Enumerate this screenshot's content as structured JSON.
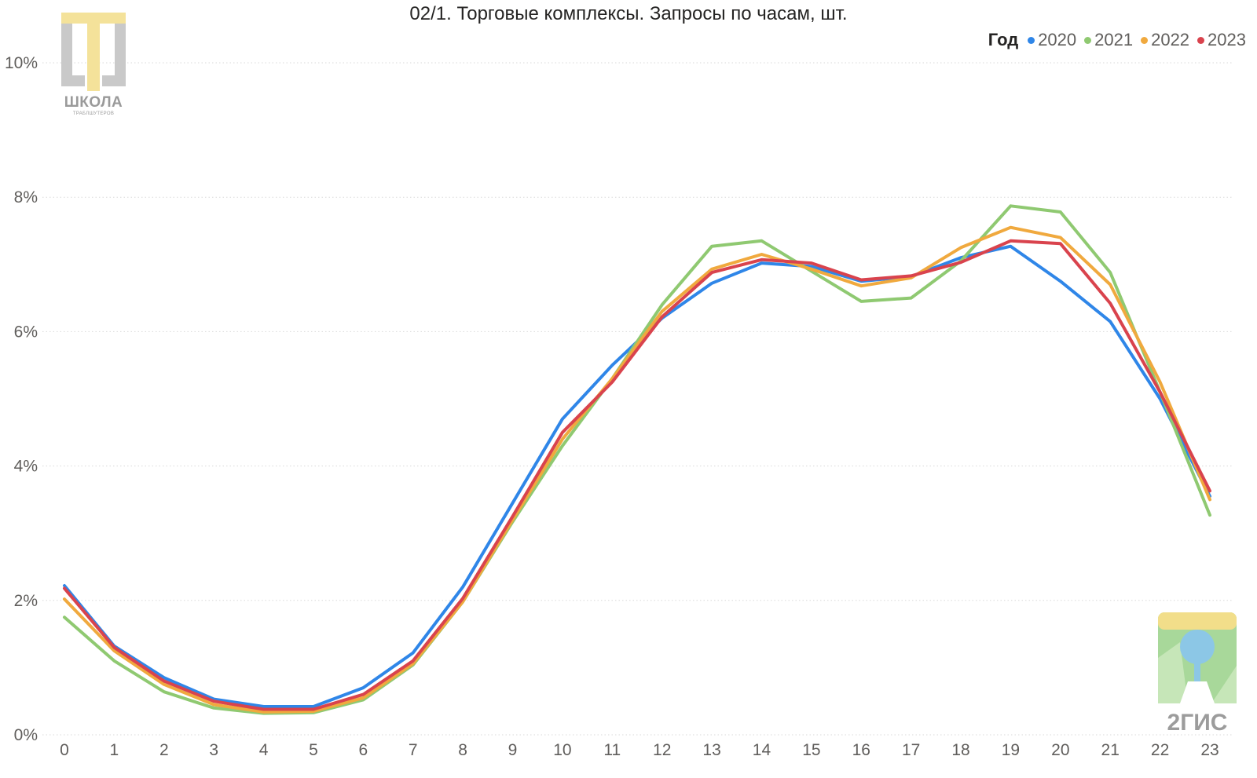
{
  "chart_data": {
    "type": "line",
    "title": "02/1. Торговые комплексы. Запросы по часам, шт.",
    "xlabel": "",
    "ylabel": "",
    "x": [
      0,
      1,
      2,
      3,
      4,
      5,
      6,
      7,
      8,
      9,
      10,
      11,
      12,
      13,
      14,
      15,
      16,
      17,
      18,
      19,
      20,
      21,
      22,
      23
    ],
    "x_tick_labels": [
      "0",
      "1",
      "2",
      "3",
      "4",
      "5",
      "6",
      "7",
      "8",
      "9",
      "10",
      "11",
      "12",
      "13",
      "14",
      "15",
      "16",
      "17",
      "18",
      "19",
      "20",
      "21",
      "22",
      "23"
    ],
    "ylim": [
      0,
      10
    ],
    "y_ticks": [
      0,
      2,
      4,
      6,
      8,
      10
    ],
    "y_tick_labels": [
      "0%",
      "2%",
      "4%",
      "6%",
      "8%",
      "10%"
    ],
    "grid": true,
    "legend": {
      "title": "Год",
      "placement": "top-right"
    },
    "series": [
      {
        "name": "2020",
        "color": "#2f86e8",
        "values": [
          2.22,
          1.32,
          0.85,
          0.53,
          0.42,
          0.42,
          0.7,
          1.22,
          2.2,
          3.45,
          4.7,
          5.5,
          6.2,
          6.72,
          7.02,
          6.97,
          6.75,
          6.82,
          7.1,
          7.27,
          6.75,
          6.15,
          5.0,
          3.55
        ]
      },
      {
        "name": "2021",
        "color": "#8fc971",
        "values": [
          1.75,
          1.1,
          0.64,
          0.4,
          0.32,
          0.33,
          0.52,
          1.04,
          1.98,
          3.17,
          4.3,
          5.3,
          6.4,
          7.27,
          7.35,
          6.9,
          6.45,
          6.5,
          7.05,
          7.87,
          7.78,
          6.88,
          5.1,
          3.27
        ]
      },
      {
        "name": "2022",
        "color": "#f0a93e",
        "values": [
          2.02,
          1.25,
          0.75,
          0.45,
          0.34,
          0.35,
          0.55,
          1.06,
          1.98,
          3.2,
          4.4,
          5.3,
          6.3,
          6.93,
          7.15,
          6.93,
          6.68,
          6.8,
          7.25,
          7.55,
          7.4,
          6.7,
          5.25,
          3.5
        ]
      },
      {
        "name": "2023",
        "color": "#d9434d",
        "values": [
          2.18,
          1.3,
          0.8,
          0.5,
          0.38,
          0.38,
          0.6,
          1.1,
          2.03,
          3.25,
          4.5,
          5.25,
          6.22,
          6.88,
          7.07,
          7.02,
          6.77,
          6.83,
          7.03,
          7.35,
          7.31,
          6.42,
          5.1,
          3.63
        ]
      }
    ]
  },
  "logos": {
    "school_text": "ШКОЛА",
    "school_subtext": "ТРАБЛШУТЕРОВ",
    "gis_text": "2ГИС"
  }
}
